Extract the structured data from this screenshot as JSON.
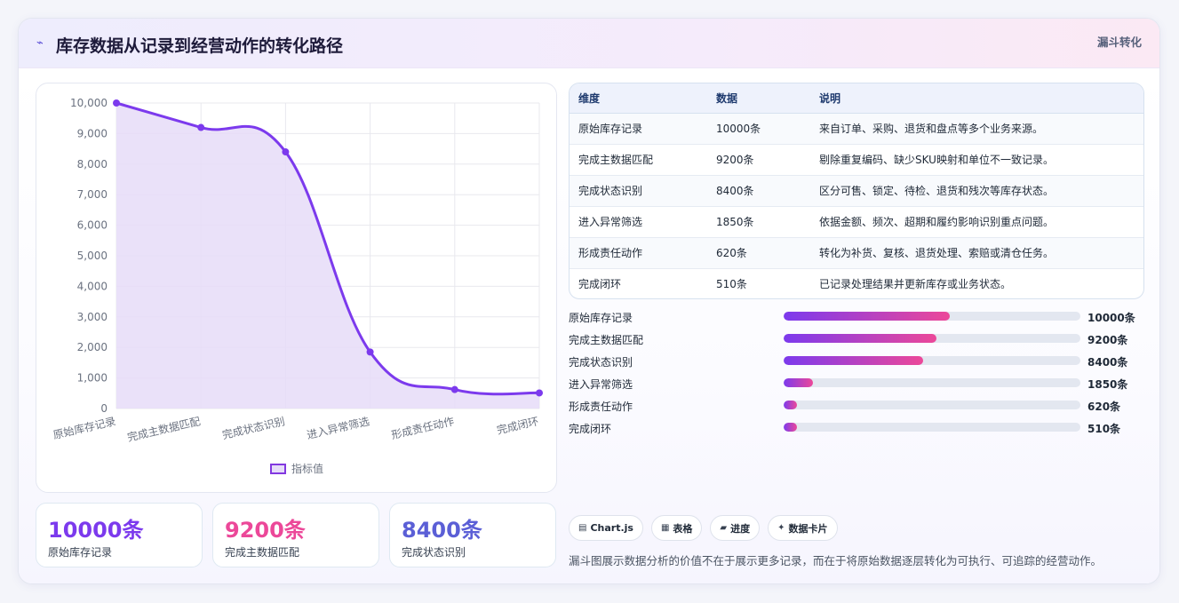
{
  "header": {
    "logo": "⌁",
    "title": "库存数据从记录到经营动作的转化路径",
    "tag": "漏斗转化"
  },
  "colors": {
    "primary": "#7c3aed",
    "pink": "#ec4899",
    "indigo": "#5b5fd6",
    "area": "#e6dcf8"
  },
  "chart_data": {
    "type": "line",
    "categories": [
      "原始库存记录",
      "完成主数据匹配",
      "完成状态识别",
      "进入异常筛选",
      "形成责任动作",
      "完成闭环"
    ],
    "series": [
      {
        "name": "指标值",
        "values": [
          10000,
          9200,
          8400,
          1850,
          620,
          510
        ]
      }
    ],
    "ylim": [
      0,
      10000
    ],
    "yticks": [
      "10,000",
      "9,000",
      "8,000",
      "7,000",
      "6,000",
      "5,000",
      "4,000",
      "3,000",
      "2,000",
      "1,000",
      "0"
    ],
    "fill": true,
    "grid": true,
    "legend": "bottom"
  },
  "stats": [
    {
      "value": "10000条",
      "label": "原始库存记录",
      "color": "#7c3aed"
    },
    {
      "value": "9200条",
      "label": "完成主数据匹配",
      "color": "#ec4899"
    },
    {
      "value": "8400条",
      "label": "完成状态识别",
      "color": "#5b5fd6"
    }
  ],
  "table": {
    "headers": [
      "维度",
      "数据",
      "说明"
    ],
    "rows": [
      [
        "原始库存记录",
        "10000条",
        "来自订单、采购、退货和盘点等多个业务来源。"
      ],
      [
        "完成主数据匹配",
        "9200条",
        "剔除重复编码、缺少SKU映射和单位不一致记录。"
      ],
      [
        "完成状态识别",
        "8400条",
        "区分可售、锁定、待检、退货和残次等库存状态。"
      ],
      [
        "进入异常筛选",
        "1850条",
        "依据金额、频次、超期和履约影响识别重点问题。"
      ],
      [
        "形成责任动作",
        "620条",
        "转化为补货、复核、退货处理、索赔或清仓任务。"
      ],
      [
        "完成闭环",
        "510条",
        "已记录处理结果并更新库存或业务状态。"
      ]
    ]
  },
  "bars": [
    {
      "label": "原始库存记录",
      "value": "10000条",
      "fraction": 0.56
    },
    {
      "label": "完成主数据匹配",
      "value": "9200条",
      "fraction": 0.515
    },
    {
      "label": "完成状态识别",
      "value": "8400条",
      "fraction": 0.47
    },
    {
      "label": "进入异常筛选",
      "value": "1850条",
      "fraction": 0.1
    },
    {
      "label": "形成责任动作",
      "value": "620条",
      "fraction": 0.045
    },
    {
      "label": "完成闭环",
      "value": "510条",
      "fraction": 0.045
    }
  ],
  "chips": [
    {
      "icon": "▤",
      "label": "Chart.js"
    },
    {
      "icon": "▦",
      "label": "表格"
    },
    {
      "icon": "▰",
      "label": "进度"
    },
    {
      "icon": "✦",
      "label": "数据卡片"
    }
  ],
  "summary": "漏斗图展示数据分析的价值不在于展示更多记录，而在于将原始数据逐层转化为可执行、可追踪的经营动作。"
}
